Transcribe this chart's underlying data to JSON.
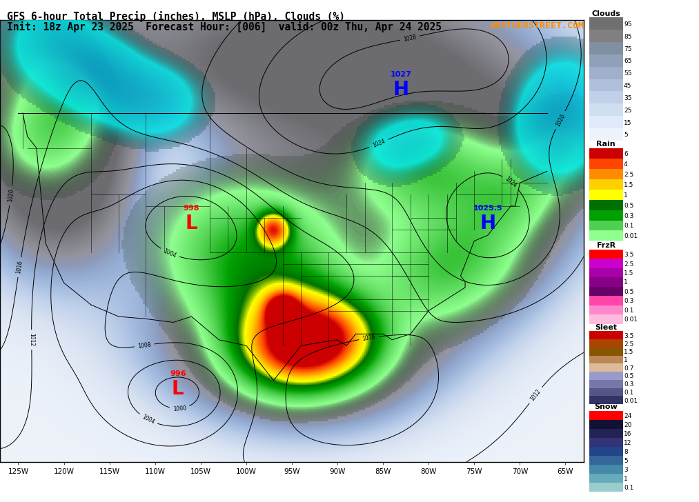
{
  "title_line1": "GFS 6-hour Total Precip (inches), MSLP (hPa), Clouds (%)",
  "title_line2": "Init: 18z Apr 23 2025  Forecast Hour: [006]  valid: 00z Thu, Apr 24 2025",
  "watermark": "WEATHERSTREET.COM",
  "watermark_color": "#FF8C00",
  "clouds_leg_colors": [
    "#707070",
    "#808080",
    "#8090A0",
    "#90A0B8",
    "#A0B0CC",
    "#B0C0DC",
    "#C0D0E8",
    "#D0DFF0",
    "#E0EAF8",
    "#EEF4FC"
  ],
  "clouds_leg_labels": [
    "95",
    "85",
    "75",
    "65",
    "55",
    "45",
    "35",
    "25",
    "15",
    "5"
  ],
  "rain_leg_colors": [
    "#CC0000",
    "#FF4500",
    "#FF8C00",
    "#FFD000",
    "#FFFF00",
    "#007000",
    "#00A000",
    "#50D050",
    "#90FF90"
  ],
  "rain_leg_labels": [
    "6",
    "4",
    "2.5",
    "1.5",
    "1",
    "0.5",
    "0.3",
    "0.1",
    "0.01"
  ],
  "frzr_leg_colors": [
    "#FF0000",
    "#CC00CC",
    "#AA00AA",
    "#880088",
    "#660066",
    "#FF44AA",
    "#FF88CC",
    "#FFBBDD",
    "#FFDDEE"
  ],
  "frzr_leg_labels": [
    "3.5",
    "2.5",
    "1.5",
    "1",
    "0.5",
    "0.3",
    "0.1",
    "0.01",
    ""
  ],
  "sleet_leg_colors": [
    "#CC0000",
    "#AA4400",
    "#885500",
    "#BB8855",
    "#DDBB99",
    "#9999CC",
    "#7777AA",
    "#555588",
    "#333366"
  ],
  "sleet_leg_labels": [
    "3.5",
    "2.5",
    "1.5",
    "1",
    "0.7",
    "0.5",
    "0.3",
    "0.1",
    "0.01"
  ],
  "snow_leg_colors": [
    "#FF0000",
    "#111133",
    "#222255",
    "#333377",
    "#224488",
    "#336699",
    "#4488AA",
    "#66AABB",
    "#99CCCC",
    "#CCE8E8"
  ],
  "snow_leg_labels": [
    "24",
    "20",
    "16",
    "12",
    "8",
    "5",
    "3",
    "1",
    "0.1",
    ""
  ],
  "lon_min": -127,
  "lon_max": -63,
  "lat_min": 19,
  "lat_max": 57
}
